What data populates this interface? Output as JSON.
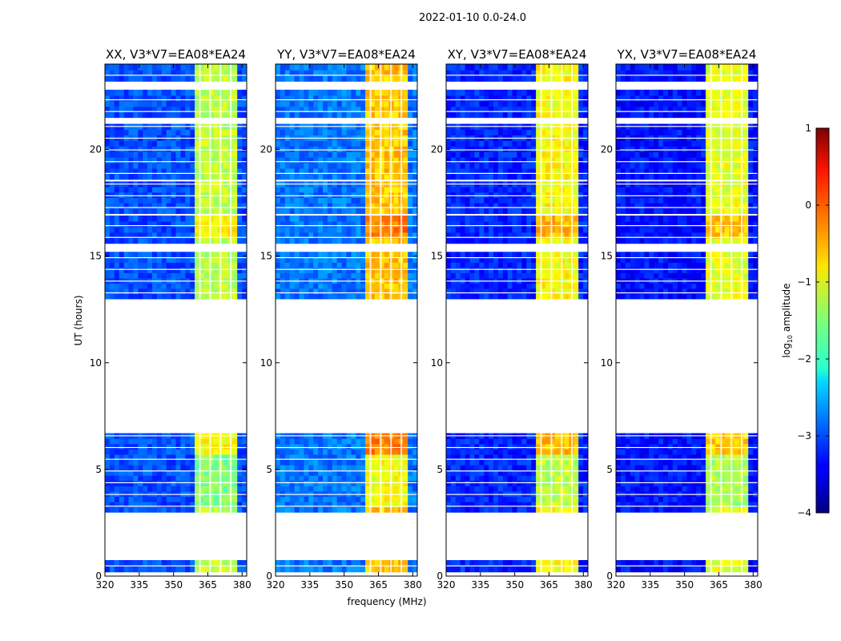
{
  "figure": {
    "suptitle": "2022-01-10 0.0-24.0",
    "xlabel": "frequency (MHz)",
    "ylabel": "UT (hours)"
  },
  "chart_data": {
    "type": "heatmap",
    "colormap": "jet",
    "panels": [
      {
        "title": "XX, V3*V7=EA08*EA24",
        "pol": "XX"
      },
      {
        "title": "YY, V3*V7=EA08*EA24",
        "pol": "YY"
      },
      {
        "title": "XY, V3*V7=EA08*EA24",
        "pol": "XY"
      },
      {
        "title": "YX, V3*V7=EA08*EA24",
        "pol": "YX"
      }
    ],
    "xlim": [
      320,
      382
    ],
    "ylim": [
      0,
      24
    ],
    "xticks": [
      320,
      335,
      350,
      365,
      380
    ],
    "yticks": [
      0,
      5,
      10,
      15,
      20
    ],
    "bright_band_mhz": [
      359,
      377
    ],
    "channel_gaps_mhz": [
      361.5,
      366,
      370.5,
      375
    ],
    "data_blocks_ut": [
      [
        0.2,
        0.75
      ],
      [
        3.0,
        6.7
      ],
      [
        13.0,
        15.2
      ],
      [
        15.6,
        16.9
      ],
      [
        17.0,
        18.5
      ],
      [
        18.6,
        21.2
      ],
      [
        21.5,
        22.8
      ],
      [
        23.2,
        24.0
      ]
    ],
    "levels": {
      "XX": {
        "base": -3.0,
        "band": -1.2
      },
      "YY": {
        "base": -2.8,
        "band": -0.6
      },
      "XY": {
        "base": -3.2,
        "band": -0.9
      },
      "YX": {
        "base": -3.3,
        "band": -1.0
      }
    },
    "colorbar": {
      "label": "log10 amplitude",
      "label_main": "log",
      "label_sub": "10",
      "label_rest": " amplitude",
      "min": -4,
      "max": 1,
      "ticks": [
        1,
        0,
        -1,
        -2,
        -3,
        -4
      ],
      "tick_labels": [
        "1",
        "0",
        "−1",
        "−2",
        "−3",
        "−4"
      ]
    }
  }
}
